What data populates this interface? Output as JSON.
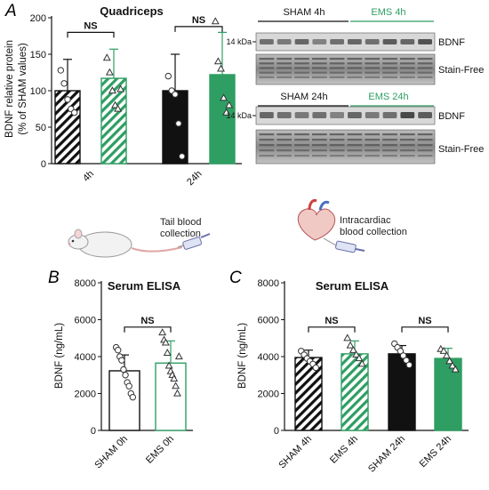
{
  "colors": {
    "ems_green": "#2E9E63",
    "ems_light": "#7DCB9C",
    "sham_black": "#111111",
    "blot_bg": "#d8d8d8"
  },
  "panels": {
    "A": "A",
    "B": "B",
    "C": "C"
  },
  "illustrations": {
    "tail_text": [
      "Tail blood",
      "collection"
    ],
    "intracardiac_text": [
      "Intracardiac",
      "blood collection"
    ]
  },
  "blot": {
    "top_header": {
      "sham": "SHAM 4h",
      "ems": "EMS 4h"
    },
    "bottom_header": {
      "sham": "SHAM 24h",
      "ems": "EMS 24h"
    },
    "kda_label": "14 kDa",
    "band_label": "BDNF",
    "stain_label": "Stain-Free"
  },
  "chart_data": [
    {
      "id": "A",
      "type": "bar",
      "title": "Quadriceps",
      "ylabel": [
        "BDNF relative protein",
        "(% of SHAM values)"
      ],
      "ylim": [
        0,
        200
      ],
      "yticks": [
        "0",
        "50",
        "100",
        "150",
        "200"
      ],
      "xticklabels": [
        "4h",
        "24h"
      ],
      "series": [
        {
          "name": "SHAM 4h",
          "group": "4h",
          "value": 100,
          "err": 43,
          "fill": "hatch-black",
          "points": [
            128,
            110,
            88,
            75,
            70
          ]
        },
        {
          "name": "EMS 4h",
          "group": "4h",
          "value": 117,
          "err": 40,
          "fill": "hatch-green",
          "points": [
            145,
            125,
            100,
            80,
            75,
            102
          ]
        },
        {
          "name": "SHAM 24h",
          "group": "24h",
          "value": 100,
          "err": 50,
          "fill": "solid-black",
          "points": [
            120,
            100,
            95,
            55,
            10
          ]
        },
        {
          "name": "EMS 24h",
          "group": "24h",
          "value": 122,
          "err": 58,
          "fill": "solid-green",
          "points": [
            195,
            140,
            130,
            90,
            70,
            80
          ]
        }
      ],
      "sig": [
        {
          "from": 0,
          "to": 1,
          "label": "NS",
          "y": 180
        },
        {
          "from": 2,
          "to": 3,
          "label": "NS",
          "y": 188
        }
      ]
    },
    {
      "id": "B",
      "type": "bar",
      "title": "Serum ELISA",
      "ylabel": [
        "BDNF (ng/mL)"
      ],
      "ylim": [
        0,
        8000
      ],
      "yticks": [
        "0",
        "2000",
        "4000",
        "6000",
        "8000"
      ],
      "categories": [
        "SHAM 0h",
        "EMS 0h"
      ],
      "series": [
        {
          "name": "SHAM 0h",
          "value": 3230,
          "err": 860,
          "fill": "outline-black",
          "points": [
            4500,
            4350,
            4000,
            3800,
            3300,
            3000,
            2600,
            2400,
            2000,
            1800
          ]
        },
        {
          "name": "EMS 0h",
          "value": 3650,
          "err": 1200,
          "fill": "outline-green",
          "points": [
            5300,
            4900,
            4750,
            4200,
            3500,
            3200,
            3000,
            2800,
            2400,
            2000,
            4000
          ]
        }
      ],
      "sig": [
        {
          "from": 0,
          "to": 1,
          "label": "NS",
          "y": 5600
        }
      ]
    },
    {
      "id": "C",
      "type": "bar",
      "title": "Serum ELISA",
      "ylabel": [
        "BDNF (ng/mL)"
      ],
      "ylim": [
        0,
        8000
      ],
      "yticks": [
        "0",
        "2000",
        "4000",
        "6000",
        "8000"
      ],
      "categories": [
        "SHAM 4h",
        "EMS 4h",
        "SHAM 24h",
        "EMS 24h"
      ],
      "series": [
        {
          "name": "SHAM 4h",
          "value": 3950,
          "err": 400,
          "fill": "hatch-black",
          "points": [
            4300,
            4100,
            3900,
            3750,
            3600,
            3400
          ]
        },
        {
          "name": "EMS 4h",
          "value": 4150,
          "err": 700,
          "fill": "hatch-green",
          "points": [
            5000,
            4600,
            4350,
            4100,
            3900,
            3600
          ]
        },
        {
          "name": "SHAM 24h",
          "value": 4150,
          "err": 450,
          "fill": "solid-black",
          "points": [
            4700,
            4500,
            4300,
            4050,
            3800,
            3550
          ]
        },
        {
          "name": "EMS 24h",
          "value": 3900,
          "err": 550,
          "fill": "solid-green",
          "points": [
            4400,
            4300,
            4050,
            3750,
            3500,
            3300
          ]
        }
      ],
      "sig": [
        {
          "from": 0,
          "to": 1,
          "label": "NS",
          "y": 5600
        },
        {
          "from": 2,
          "to": 3,
          "label": "NS",
          "y": 5600
        }
      ]
    }
  ]
}
